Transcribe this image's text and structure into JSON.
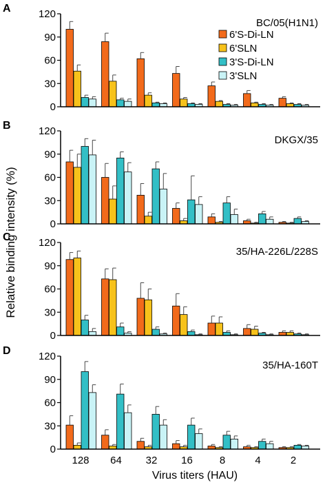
{
  "figure": {
    "ylabel": "Relative binding intensity (%)",
    "xlabel": "Virus titers (HAU)"
  },
  "colors": {
    "6'S-Di-LN": "#f26a1b",
    "6'SLN": "#f7c21b",
    "3'S-Di-LN": "#33bfc6",
    "3'SLN": "#c9f3f6"
  },
  "chart_data": [
    {
      "type": "bar",
      "panel": "A",
      "title": "BC/05(H1N1)",
      "categories": [
        "128",
        "64",
        "32",
        "16",
        "8",
        "4",
        "2"
      ],
      "ylim": [
        0,
        120
      ],
      "yticks": [
        0,
        30,
        60,
        90,
        120
      ],
      "legend": [
        "6'S-Di-LN",
        "6'SLN",
        "3'S-Di-LN",
        "3'SLN"
      ],
      "series": [
        {
          "name": "6'S-Di-LN",
          "values": [
            100,
            84,
            62,
            43,
            27,
            17,
            11
          ],
          "errors": [
            10,
            11,
            8,
            9,
            5,
            4,
            2
          ]
        },
        {
          "name": "6'SLN",
          "values": [
            46,
            33,
            15,
            10,
            7,
            5,
            4
          ],
          "errors": [
            8,
            8,
            3,
            2,
            1,
            1,
            1
          ]
        },
        {
          "name": "3'S-Di-LN",
          "values": [
            12,
            9,
            5,
            4,
            3,
            3,
            3
          ],
          "errors": [
            3,
            2,
            1,
            1,
            1,
            1,
            1
          ]
        },
        {
          "name": "3'SLN",
          "values": [
            10,
            7,
            4,
            3,
            2,
            2,
            2
          ],
          "errors": [
            3,
            3,
            1,
            1,
            1,
            1,
            1
          ]
        }
      ]
    },
    {
      "type": "bar",
      "panel": "B",
      "title": "DKGX/35",
      "categories": [
        "128",
        "64",
        "32",
        "16",
        "8",
        "4",
        "2"
      ],
      "ylim": [
        0,
        120
      ],
      "yticks": [
        0,
        30,
        60,
        90,
        120
      ],
      "series": [
        {
          "name": "6'S-Di-LN",
          "values": [
            80,
            60,
            37,
            20,
            9,
            4,
            2
          ],
          "errors": [
            15,
            18,
            15,
            7,
            4,
            2,
            1
          ]
        },
        {
          "name": "6'SLN",
          "values": [
            73,
            32,
            10,
            4,
            2,
            1,
            1
          ],
          "errors": [
            17,
            17,
            5,
            3,
            1,
            1,
            1
          ]
        },
        {
          "name": "3'S-Di-LN",
          "values": [
            100,
            85,
            71,
            31,
            27,
            13,
            7
          ],
          "errors": [
            10,
            8,
            9,
            31,
            8,
            3,
            2
          ]
        },
        {
          "name": "3'SLN",
          "values": [
            89,
            67,
            45,
            25,
            12,
            6,
            3
          ],
          "errors": [
            19,
            12,
            20,
            10,
            7,
            3,
            1
          ]
        }
      ]
    },
    {
      "type": "bar",
      "panel": "C",
      "title": "35/HA-226L/228S",
      "categories": [
        "128",
        "64",
        "32",
        "16",
        "8",
        "4",
        "2"
      ],
      "ylim": [
        0,
        120
      ],
      "yticks": [
        0,
        30,
        60,
        90,
        120
      ],
      "series": [
        {
          "name": "6'S-Di-LN",
          "values": [
            98,
            73,
            48,
            38,
            16,
            9,
            4
          ],
          "errors": [
            9,
            13,
            20,
            16,
            9,
            5,
            2
          ]
        },
        {
          "name": "6'SLN",
          "values": [
            100,
            72,
            46,
            27,
            16,
            8,
            4
          ],
          "errors": [
            9,
            15,
            14,
            10,
            8,
            4,
            2
          ]
        },
        {
          "name": "3'S-Di-LN",
          "values": [
            20,
            11,
            8,
            5,
            4,
            3,
            2
          ],
          "errors": [
            6,
            5,
            3,
            2,
            2,
            1,
            1
          ]
        },
        {
          "name": "3'SLN",
          "values": [
            5,
            3,
            2,
            1,
            1,
            1,
            1
          ],
          "errors": [
            4,
            2,
            1,
            1,
            1,
            1,
            1
          ]
        }
      ]
    },
    {
      "type": "bar",
      "panel": "D",
      "title": "35/HA-160T",
      "categories": [
        "128",
        "64",
        "32",
        "16",
        "8",
        "4",
        "2"
      ],
      "ylim": [
        0,
        120
      ],
      "yticks": [
        0,
        30,
        60,
        90,
        120
      ],
      "series": [
        {
          "name": "6'S-Di-LN",
          "values": [
            31,
            18,
            10,
            7,
            4,
            3,
            2
          ],
          "errors": [
            12,
            7,
            4,
            4,
            2,
            2,
            1
          ]
        },
        {
          "name": "6'SLN",
          "values": [
            5,
            4,
            3,
            3,
            2,
            2,
            2
          ],
          "errors": [
            3,
            2,
            2,
            2,
            1,
            1,
            1
          ]
        },
        {
          "name": "3'S-Di-LN",
          "values": [
            100,
            71,
            45,
            31,
            18,
            10,
            5
          ],
          "errors": [
            13,
            13,
            10,
            9,
            5,
            3,
            1
          ]
        },
        {
          "name": "3'SLN",
          "values": [
            73,
            47,
            31,
            20,
            13,
            7,
            4
          ],
          "errors": [
            10,
            10,
            7,
            6,
            4,
            3,
            1
          ]
        }
      ]
    }
  ]
}
